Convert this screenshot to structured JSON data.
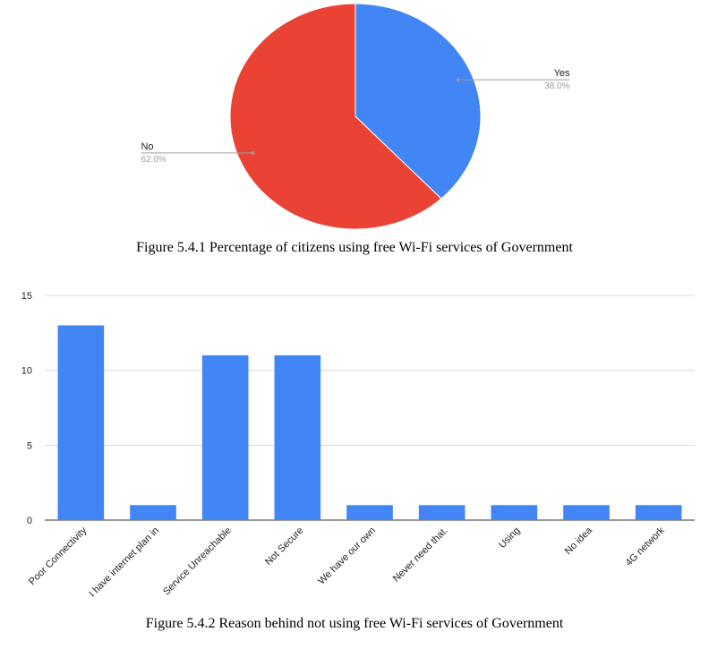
{
  "captions": {
    "pie": "Figure 5.4.1 Percentage of citizens using free Wi-Fi services of Government",
    "bar": "Figure 5.4.2 Reason behind not using free Wi-Fi services of Government"
  },
  "chart_data": [
    {
      "type": "pie",
      "title": "",
      "slices": [
        {
          "label": "Yes",
          "value": 38.0,
          "pct_label": "38.0%",
          "color": "#4285f4"
        },
        {
          "label": "No",
          "value": 62.0,
          "pct_label": "62.0%",
          "color": "#ea4335"
        }
      ]
    },
    {
      "type": "bar",
      "title": "",
      "xlabel": "",
      "ylabel": "",
      "categories": [
        "Poor Connectivity",
        "I have internet plan in",
        "Service Unreachable",
        "Not Secure",
        "We have our own",
        "Never need that.",
        "Using",
        "No idea",
        "4G network"
      ],
      "values": [
        13,
        1,
        11,
        11,
        1,
        1,
        1,
        1,
        1
      ],
      "ylim": [
        0,
        15
      ],
      "yticks": [
        0,
        5,
        10,
        15
      ],
      "grid": true,
      "color": "#4285f4"
    }
  ]
}
